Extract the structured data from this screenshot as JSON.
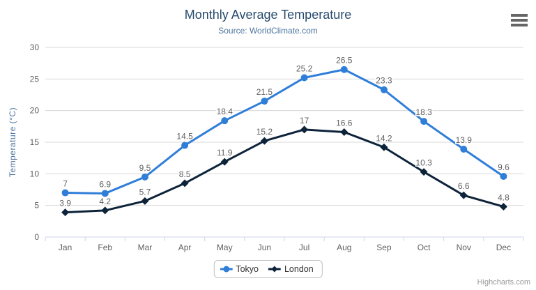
{
  "chart": {
    "title": "Monthly Average Temperature",
    "subtitle": "Source: WorldClimate.com",
    "credits": "Highcharts.com"
  },
  "chart_data": {
    "type": "line",
    "title": "Monthly Average Temperature",
    "subtitle": "Source: WorldClimate.com",
    "categories": [
      "Jan",
      "Feb",
      "Mar",
      "Apr",
      "May",
      "Jun",
      "Jul",
      "Aug",
      "Sep",
      "Oct",
      "Nov",
      "Dec"
    ],
    "series": [
      {
        "name": "Tokyo",
        "color": "#2f7ed8",
        "marker": "circle",
        "values": [
          7,
          6.9,
          9.5,
          14.5,
          18.4,
          21.5,
          25.2,
          26.5,
          23.3,
          18.3,
          13.9,
          9.6
        ]
      },
      {
        "name": "London",
        "color": "#0d233a",
        "marker": "diamond",
        "values": [
          3.9,
          4.2,
          5.7,
          8.5,
          11.9,
          15.2,
          17,
          16.6,
          14.2,
          10.3,
          6.6,
          4.8
        ]
      }
    ],
    "xlabel": "",
    "ylabel": "Temperature (°C)",
    "ylim": [
      0,
      30
    ],
    "ytick_interval": 5,
    "grid": true,
    "data_labels": true,
    "legend_position": "bottom"
  },
  "style": {
    "grid_color": "#d8d8d8",
    "axis_line_color": "#ccd6eb",
    "tick_label_color": "#606060",
    "data_label_color": "#606060",
    "title_color": "#274b6d",
    "subtitle_color": "#4d759e",
    "legend_text_color": "#333333",
    "credits_color": "#999999",
    "menu_icon_color": "#666666"
  }
}
